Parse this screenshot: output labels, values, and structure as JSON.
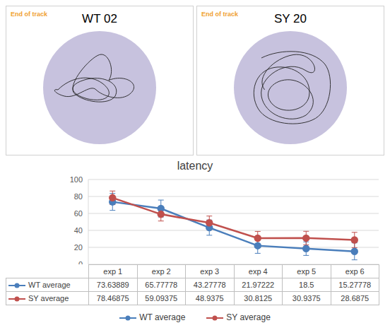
{
  "tracks": [
    {
      "title": "WT 02",
      "label": "End of track"
    },
    {
      "title": "SY 20",
      "label": "End of track"
    }
  ],
  "chart_data": {
    "type": "line",
    "title": "latency",
    "categories": [
      "exp 1",
      "exp 2",
      "exp 3",
      "exp 4",
      "exp 5",
      "exp 6"
    ],
    "series": [
      {
        "name": "WT average",
        "color": "#4a7ebb",
        "marker": "circle",
        "values": [
          73.63889,
          65.77778,
          43.27778,
          21.97222,
          18.5,
          15.27778
        ],
        "errors": [
          10,
          10,
          9,
          9,
          8,
          10
        ]
      },
      {
        "name": "SY average",
        "color": "#c0504d",
        "marker": "circle",
        "values": [
          78.46875,
          59.09375,
          48.9375,
          30.8125,
          30.9375,
          28.6875
        ],
        "errors": [
          8,
          8,
          8,
          8,
          8,
          9
        ]
      }
    ],
    "ylim": [
      0,
      100
    ],
    "yticks": [
      0,
      20,
      40,
      60,
      80,
      100
    ],
    "grid": true,
    "legend": "bottom"
  }
}
